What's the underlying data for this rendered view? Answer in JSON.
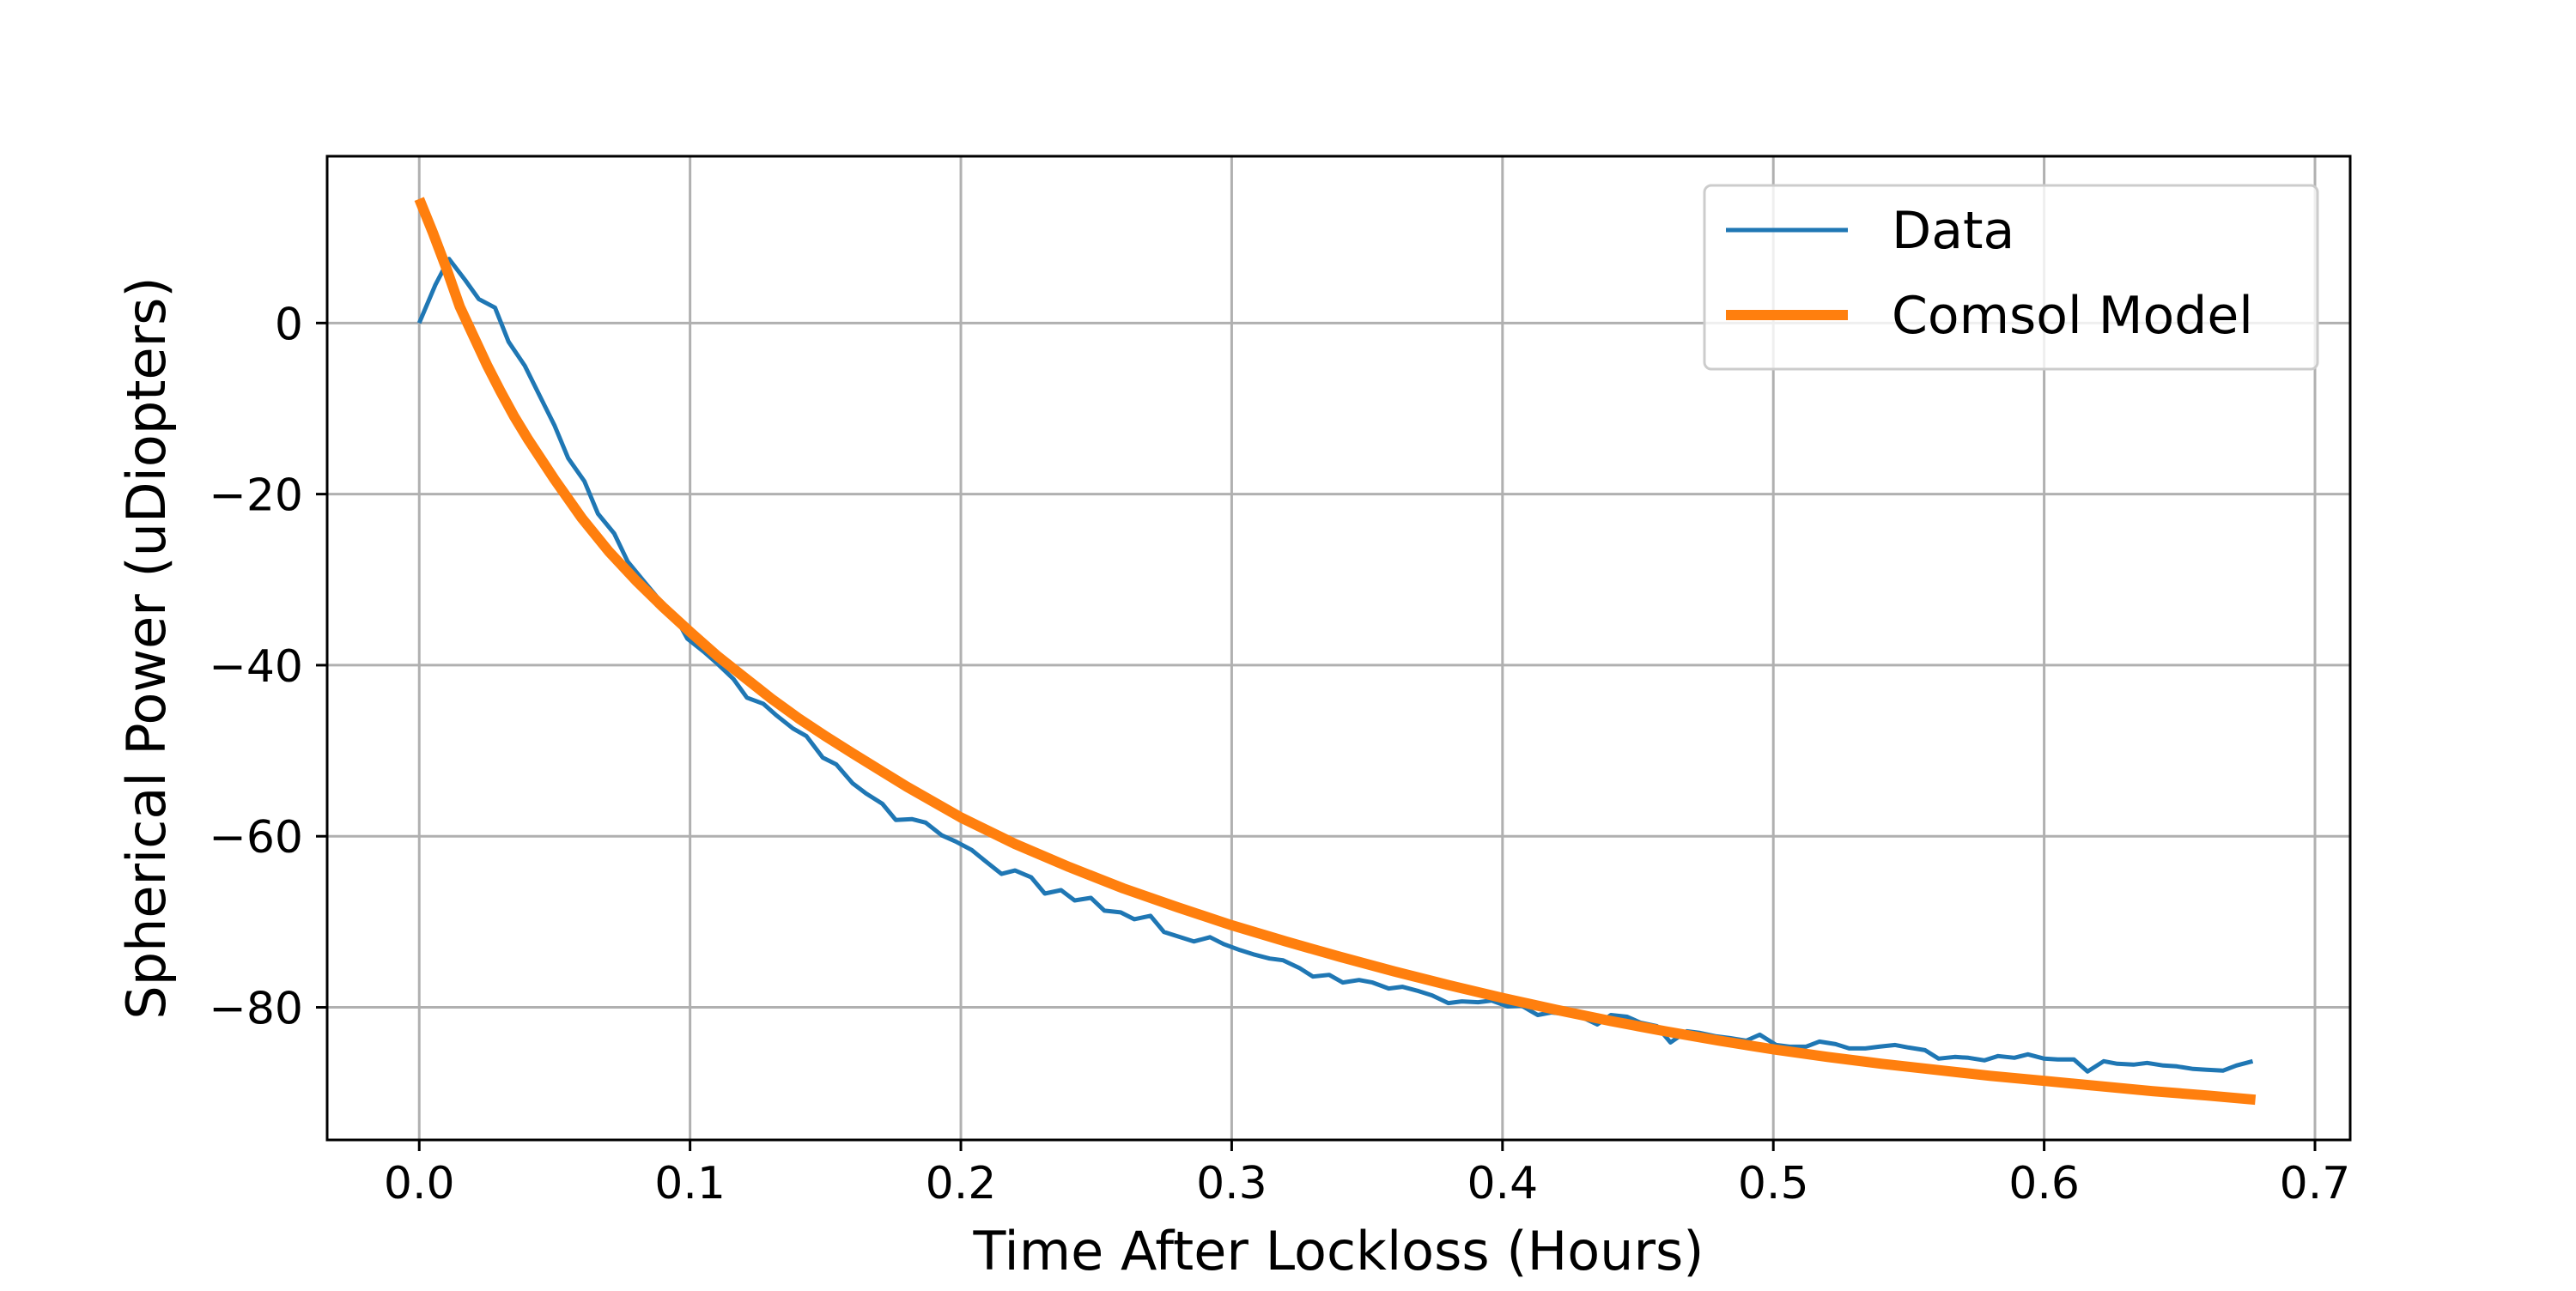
{
  "chart_data": {
    "type": "line",
    "title": "",
    "xlabel": "Time After Lockloss (Hours)",
    "ylabel": "Spherical Power (uDiopters)",
    "xlim": [
      -0.034,
      0.713
    ],
    "ylim": [
      -95.5,
      19.5
    ],
    "xticks": [
      0.0,
      0.1,
      0.2,
      0.3,
      0.4,
      0.5,
      0.6,
      0.7
    ],
    "xtick_labels": [
      "0.0",
      "0.1",
      "0.2",
      "0.3",
      "0.4",
      "0.5",
      "0.6",
      "0.7"
    ],
    "yticks": [
      0,
      -20,
      -40,
      -60,
      -80
    ],
    "ytick_labels": [
      "0",
      "−20",
      "−40",
      "−60",
      "−80"
    ],
    "grid": true,
    "legend_position": "top-right",
    "series": [
      {
        "name": "Data",
        "color": "#1f77b4",
        "x": [
          0.0,
          0.006,
          0.011,
          0.017,
          0.022,
          0.028,
          0.033,
          0.039,
          0.044,
          0.05,
          0.055,
          0.061,
          0.066,
          0.072,
          0.077,
          0.083,
          0.088,
          0.094,
          0.099,
          0.105,
          0.11,
          0.116,
          0.121,
          0.127,
          0.132,
          0.138,
          0.143,
          0.149,
          0.154,
          0.16,
          0.165,
          0.171,
          0.176,
          0.182,
          0.187,
          0.193,
          0.198,
          0.204,
          0.209,
          0.215,
          0.22,
          0.226,
          0.231,
          0.237,
          0.242,
          0.248,
          0.253,
          0.259,
          0.264,
          0.27,
          0.275,
          0.281,
          0.286,
          0.292,
          0.297,
          0.303,
          0.308,
          0.314,
          0.319,
          0.325,
          0.33,
          0.336,
          0.341,
          0.347,
          0.352,
          0.358,
          0.363,
          0.369,
          0.374,
          0.38,
          0.385,
          0.391,
          0.396,
          0.402,
          0.407,
          0.413,
          0.418,
          0.424,
          0.429,
          0.435,
          0.44,
          0.446,
          0.451,
          0.457,
          0.462,
          0.468,
          0.473,
          0.479,
          0.484,
          0.49,
          0.495,
          0.501,
          0.506,
          0.512,
          0.517,
          0.523,
          0.528,
          0.534,
          0.539,
          0.545,
          0.55,
          0.556,
          0.561,
          0.567,
          0.572,
          0.578,
          0.583,
          0.589,
          0.594,
          0.6,
          0.605,
          0.611,
          0.616,
          0.622,
          0.627,
          0.633,
          0.638,
          0.644,
          0.649,
          0.655,
          0.66,
          0.666,
          0.671,
          0.677
        ],
        "y": [
          0.0,
          4.5,
          7.5,
          5.0,
          2.8,
          1.8,
          -2.2,
          -5.0,
          -8.2,
          -12.0,
          -15.8,
          -18.5,
          -22.3,
          -24.6,
          -27.9,
          -30.2,
          -32.1,
          -34.0,
          -36.9,
          -38.4,
          -39.8,
          -41.6,
          -43.8,
          -44.5,
          -45.9,
          -47.4,
          -48.3,
          -50.8,
          -51.6,
          -53.8,
          -55.0,
          -56.2,
          -58.1,
          -58.0,
          -58.4,
          -59.9,
          -60.6,
          -61.6,
          -62.9,
          -64.4,
          -64.0,
          -64.8,
          -66.7,
          -66.3,
          -67.5,
          -67.2,
          -68.7,
          -68.9,
          -69.7,
          -69.3,
          -71.2,
          -71.8,
          -72.3,
          -71.8,
          -72.6,
          -73.3,
          -73.8,
          -74.3,
          -74.5,
          -75.4,
          -76.4,
          -76.2,
          -77.1,
          -76.8,
          -77.1,
          -77.8,
          -77.6,
          -78.1,
          -78.6,
          -79.5,
          -79.3,
          -79.4,
          -79.2,
          -79.9,
          -79.8,
          -80.9,
          -80.6,
          -80.8,
          -81.1,
          -82.0,
          -80.9,
          -81.1,
          -81.8,
          -82.2,
          -84.1,
          -82.8,
          -83.0,
          -83.4,
          -83.6,
          -83.9,
          -83.2,
          -84.4,
          -84.6,
          -84.6,
          -84.0,
          -84.3,
          -84.8,
          -84.8,
          -84.6,
          -84.4,
          -84.7,
          -85.0,
          -86.0,
          -85.8,
          -85.9,
          -86.2,
          -85.7,
          -85.9,
          -85.5,
          -86.0,
          -86.1,
          -86.1,
          -87.5,
          -86.3,
          -86.6,
          -86.7,
          -86.5,
          -86.8,
          -86.9,
          -87.2,
          -87.3,
          -87.4,
          -86.8,
          -86.3
        ]
      },
      {
        "name": "Comsol Model",
        "color": "#ff7f0e",
        "x": [
          0.0,
          0.005,
          0.01,
          0.015,
          0.02,
          0.025,
          0.03,
          0.035,
          0.04,
          0.05,
          0.06,
          0.07,
          0.08,
          0.09,
          0.1,
          0.11,
          0.12,
          0.13,
          0.14,
          0.15,
          0.16,
          0.18,
          0.2,
          0.22,
          0.24,
          0.26,
          0.28,
          0.3,
          0.32,
          0.34,
          0.36,
          0.38,
          0.4,
          0.42,
          0.44,
          0.46,
          0.48,
          0.5,
          0.52,
          0.54,
          0.56,
          0.58,
          0.6,
          0.62,
          0.64,
          0.66,
          0.678
        ],
        "y": [
          14.5,
          10.6,
          6.4,
          1.9,
          -1.5,
          -4.9,
          -8.0,
          -10.9,
          -13.5,
          -18.3,
          -22.8,
          -26.7,
          -30.1,
          -33.2,
          -36.1,
          -38.9,
          -41.4,
          -43.9,
          -46.2,
          -48.3,
          -50.3,
          -54.2,
          -57.8,
          -60.9,
          -63.6,
          -66.1,
          -68.3,
          -70.4,
          -72.3,
          -74.1,
          -75.8,
          -77.4,
          -78.9,
          -80.3,
          -81.6,
          -82.8,
          -83.9,
          -84.9,
          -85.8,
          -86.6,
          -87.3,
          -88.0,
          -88.6,
          -89.2,
          -89.8,
          -90.3,
          -90.8
        ]
      }
    ]
  }
}
